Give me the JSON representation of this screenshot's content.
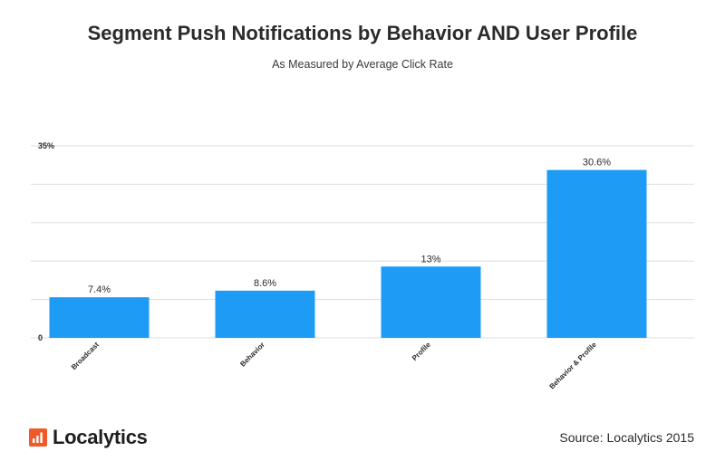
{
  "header": {
    "title": "Segment Push Notifications by Behavior AND User Profile",
    "subtitle": "As Measured by Average Click Rate"
  },
  "chart_data": {
    "type": "bar",
    "categories": [
      "Broadcast",
      "Behavior",
      "Profile",
      "Behavior & Profile"
    ],
    "values": [
      7.4,
      8.6,
      13,
      30.6
    ],
    "value_labels": [
      "7.4%",
      "8.6%",
      "13%",
      "30.6%"
    ],
    "ylim": [
      0,
      35
    ],
    "y_tick_labels": [
      {
        "value": 0,
        "label": "0"
      },
      {
        "value": 35,
        "label": "35%"
      }
    ],
    "gridlines": [
      0,
      7,
      14,
      21,
      28,
      35
    ],
    "grid": true,
    "bar_color": "#1e9cf5",
    "grid_color": "#dddddd",
    "title": "Segment Push Notifications by Behavior AND User Profile",
    "subtitle": "As Measured by Average Click Rate",
    "xlabel": "",
    "ylabel": ""
  },
  "footer": {
    "brand_name": "Localytics",
    "brand_color": "#ef5a28",
    "source": "Source: Localytics 2015"
  }
}
